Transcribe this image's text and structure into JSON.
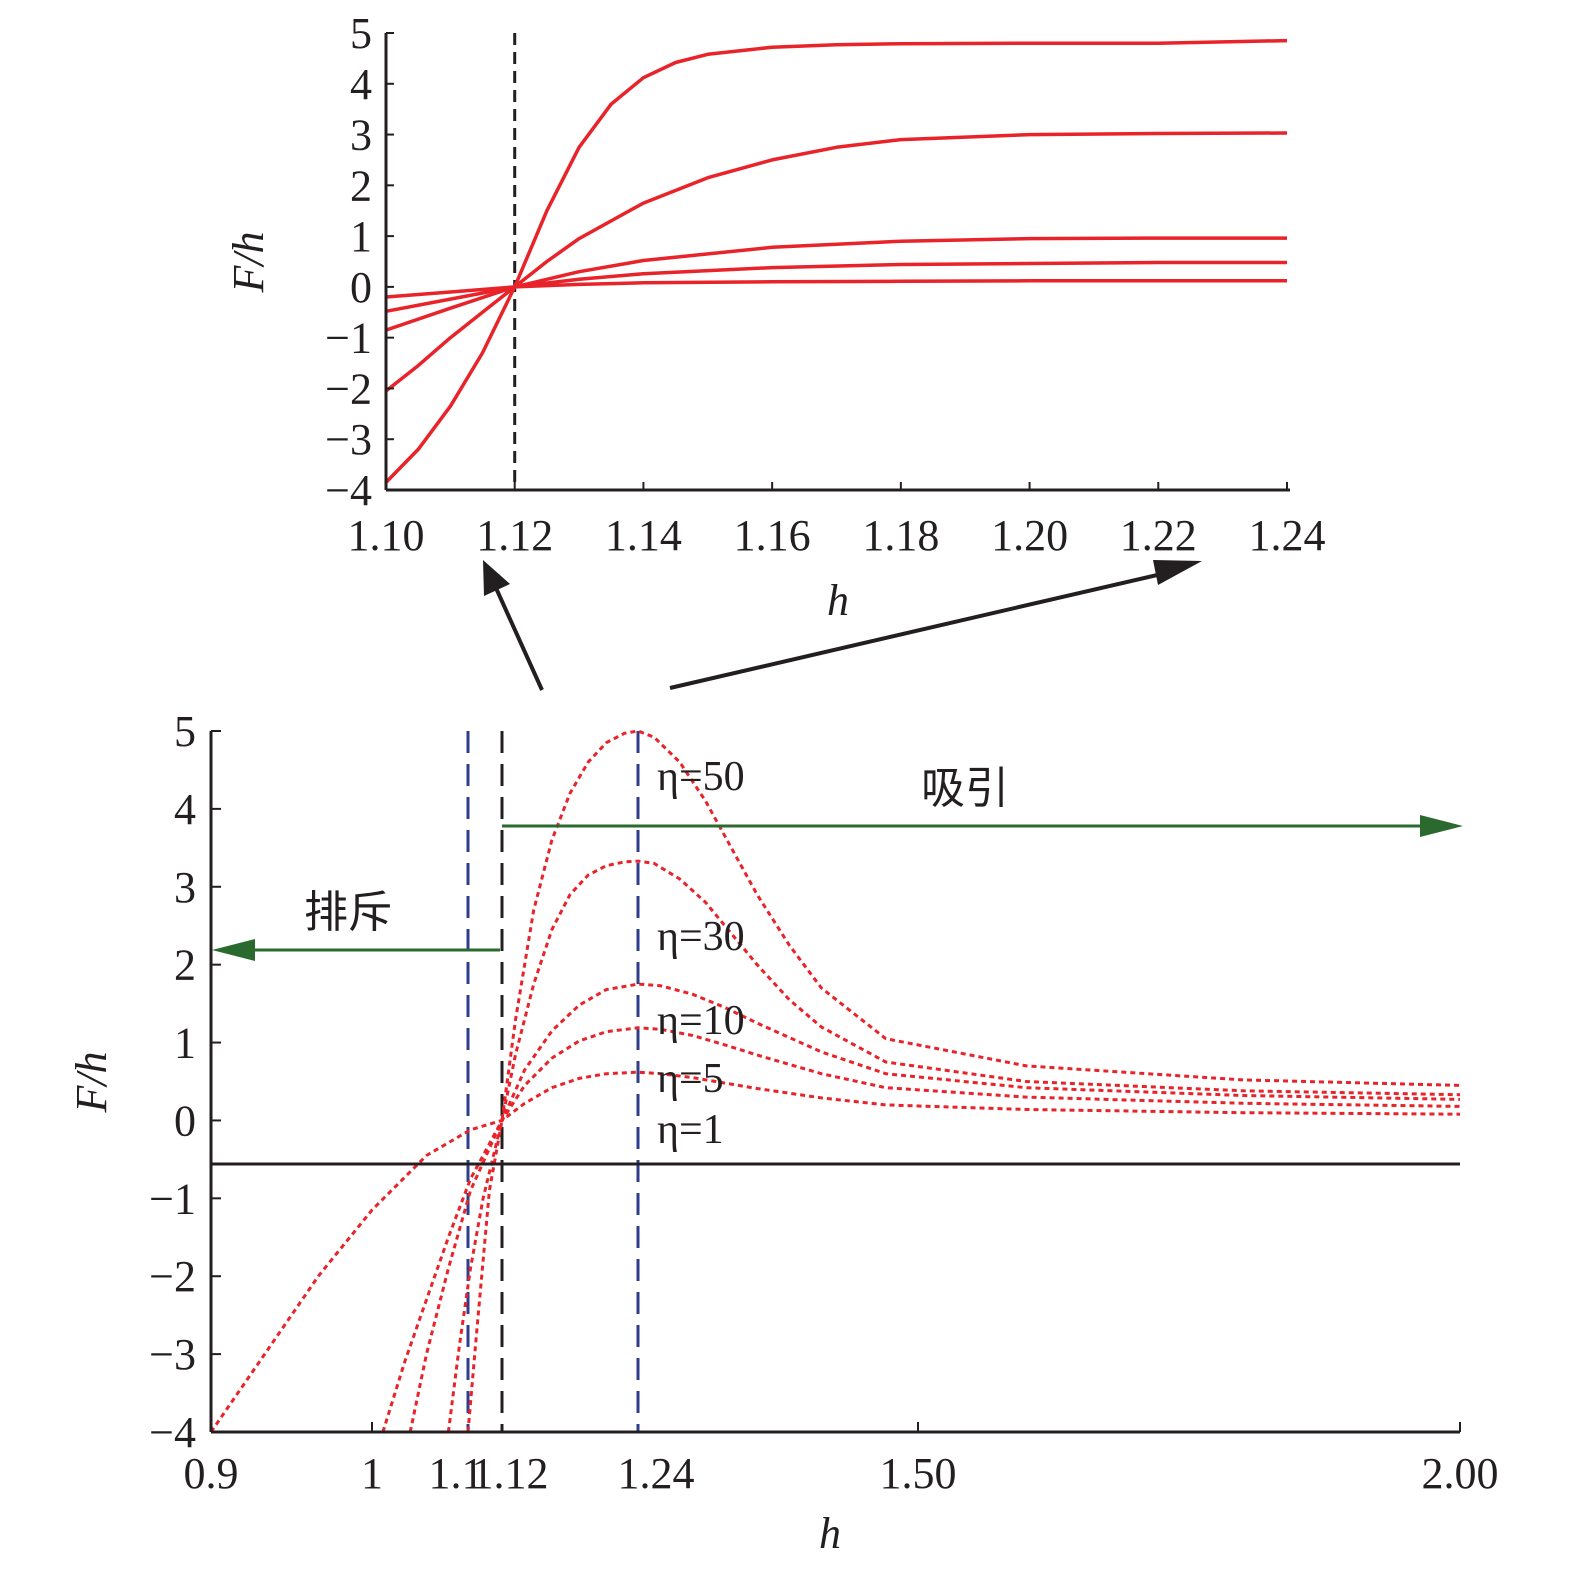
{
  "chart_data": [
    {
      "type": "line",
      "panel": "inset",
      "xlabel": "h",
      "ylabel": "F/h",
      "xlim": [
        1.1,
        1.24
      ],
      "ylim": [
        -4,
        5
      ],
      "xticks": [
        1.1,
        1.12,
        1.14,
        1.16,
        1.18,
        1.2,
        1.22,
        1.24
      ],
      "xtick_labels": [
        "1.10",
        "1.12",
        "1.14",
        "1.16",
        "1.18",
        "1.20",
        "1.22",
        "1.24"
      ],
      "yticks": [
        -4,
        -3,
        -2,
        -1,
        0,
        1,
        2,
        3,
        4,
        5
      ],
      "ytick_labels": [
        "−4",
        "−3",
        "−2",
        "−1",
        "0",
        "1",
        "2",
        "3",
        "4",
        "5"
      ],
      "vline_x": 1.12,
      "line_color": "#e8232a",
      "series": [
        {
          "x": [
            1.1,
            1.105,
            1.11,
            1.115,
            1.12,
            1.125,
            1.13,
            1.135,
            1.14,
            1.145,
            1.15,
            1.16,
            1.17,
            1.18,
            1.2,
            1.22,
            1.24
          ],
          "values": [
            -3.85,
            -3.2,
            -2.35,
            -1.3,
            0.0,
            1.5,
            2.75,
            3.6,
            4.12,
            4.42,
            4.58,
            4.72,
            4.77,
            4.79,
            4.8,
            4.8,
            4.85
          ]
        },
        {
          "x": [
            1.1,
            1.105,
            1.11,
            1.115,
            1.12,
            1.125,
            1.13,
            1.14,
            1.15,
            1.16,
            1.17,
            1.18,
            1.2,
            1.22,
            1.24
          ],
          "values": [
            -2.05,
            -1.55,
            -1.0,
            -0.5,
            0.0,
            0.5,
            0.95,
            1.65,
            2.15,
            2.5,
            2.75,
            2.9,
            3.0,
            3.02,
            3.03
          ]
        },
        {
          "x": [
            1.1,
            1.11,
            1.12,
            1.13,
            1.14,
            1.16,
            1.18,
            1.2,
            1.22,
            1.24
          ],
          "values": [
            -0.85,
            -0.42,
            0.0,
            0.3,
            0.52,
            0.78,
            0.9,
            0.95,
            0.96,
            0.96
          ]
        },
        {
          "x": [
            1.1,
            1.11,
            1.12,
            1.13,
            1.14,
            1.16,
            1.18,
            1.2,
            1.22,
            1.24
          ],
          "values": [
            -0.48,
            -0.24,
            0.0,
            0.15,
            0.26,
            0.38,
            0.44,
            0.46,
            0.48,
            0.48
          ]
        },
        {
          "x": [
            1.1,
            1.11,
            1.12,
            1.13,
            1.14,
            1.16,
            1.18,
            1.2,
            1.22,
            1.24
          ],
          "values": [
            -0.2,
            -0.1,
            0.0,
            0.05,
            0.08,
            0.1,
            0.11,
            0.12,
            0.12,
            0.12
          ]
        }
      ]
    },
    {
      "type": "line",
      "panel": "main",
      "xlabel": "h",
      "ylabel": "F/h",
      "xlim": [
        0.9,
        2.0
      ],
      "ylim": [
        -4,
        5
      ],
      "x_axis_points": [
        0.9,
        1.05,
        1.138,
        1.165,
        1.315,
        1.75,
        2.0
      ],
      "xtick_labels": [
        "0.9",
        "1",
        "1.1",
        "1.12",
        "1.24",
        "1.50",
        "2.00"
      ],
      "yticks": [
        -4,
        -3,
        -2,
        -1,
        0,
        1,
        2,
        3,
        4,
        5
      ],
      "ytick_labels": [
        "−4",
        "−3",
        "−2",
        "−1",
        "0",
        "1",
        "2",
        "3",
        "4",
        "5"
      ],
      "vlines": [
        {
          "x": 1.138,
          "color": "#2e3e8c"
        },
        {
          "x": 1.165,
          "color": "#231f20"
        },
        {
          "x": 1.315,
          "color": "#2e3e8c"
        }
      ],
      "line_color": "#e8232a",
      "series": [
        {
          "name": "η=50",
          "x": [
            1.138,
            1.145,
            1.15,
            1.155,
            1.165,
            1.18,
            1.2,
            1.22,
            1.24,
            1.26,
            1.28,
            1.3,
            1.315,
            1.34,
            1.38,
            1.42,
            1.46,
            1.5,
            1.55,
            1.6,
            1.7,
            1.8,
            1.9,
            2.0
          ],
          "values": [
            -4.0,
            -2.7,
            -1.8,
            -0.9,
            0.0,
            1.3,
            2.7,
            3.6,
            4.2,
            4.6,
            4.85,
            4.97,
            5.0,
            4.92,
            4.6,
            4.1,
            3.5,
            2.9,
            2.25,
            1.7,
            1.05,
            0.7,
            0.52,
            0.45
          ]
        },
        {
          "name": "η=30",
          "x": [
            1.12,
            1.13,
            1.14,
            1.15,
            1.165,
            1.18,
            1.2,
            1.22,
            1.24,
            1.26,
            1.28,
            1.3,
            1.315,
            1.34,
            1.38,
            1.42,
            1.46,
            1.5,
            1.55,
            1.6,
            1.7,
            1.8,
            1.9,
            2.0
          ],
          "values": [
            -4.0,
            -2.9,
            -1.9,
            -1.0,
            0.0,
            0.85,
            1.75,
            2.45,
            2.9,
            3.15,
            3.27,
            3.32,
            3.33,
            3.3,
            3.1,
            2.8,
            2.4,
            2.0,
            1.55,
            1.2,
            0.75,
            0.5,
            0.38,
            0.33
          ]
        },
        {
          "name": "η=10",
          "x": [
            1.085,
            1.1,
            1.12,
            1.14,
            1.165,
            1.19,
            1.22,
            1.25,
            1.28,
            1.315,
            1.35,
            1.4,
            1.45,
            1.5,
            1.6,
            1.7,
            1.8,
            1.9,
            2.0
          ],
          "values": [
            -4.0,
            -3.0,
            -1.9,
            -0.9,
            0.0,
            0.65,
            1.15,
            1.48,
            1.68,
            1.75,
            1.73,
            1.62,
            1.45,
            1.25,
            0.88,
            0.6,
            0.42,
            0.32,
            0.27
          ]
        },
        {
          "name": "η=5",
          "x": [
            1.06,
            1.08,
            1.1,
            1.12,
            1.14,
            1.165,
            1.19,
            1.22,
            1.25,
            1.28,
            1.315,
            1.35,
            1.4,
            1.45,
            1.5,
            1.6,
            1.7,
            1.8,
            1.9,
            2.0
          ],
          "values": [
            -4.0,
            -3.1,
            -2.3,
            -1.5,
            -0.75,
            0.0,
            0.45,
            0.8,
            1.02,
            1.14,
            1.19,
            1.17,
            1.09,
            0.97,
            0.84,
            0.6,
            0.42,
            0.3,
            0.22,
            0.18
          ]
        },
        {
          "name": "η=1",
          "x": [
            0.9,
            0.95,
            1.0,
            1.05,
            1.1,
            1.14,
            1.165,
            1.19,
            1.22,
            1.25,
            1.28,
            1.315,
            1.35,
            1.4,
            1.45,
            1.5,
            1.6,
            1.7,
            1.8,
            1.9,
            2.0
          ],
          "values": [
            -4.0,
            -3.0,
            -2.0,
            -1.15,
            -0.45,
            -0.12,
            0.0,
            0.22,
            0.42,
            0.54,
            0.6,
            0.62,
            0.6,
            0.55,
            0.48,
            0.41,
            0.29,
            0.2,
            0.14,
            0.1,
            0.08
          ]
        }
      ],
      "annotations": {
        "repulsion": "排斥",
        "attraction": "吸引"
      },
      "arrow_color": "#2a6a2e"
    }
  ]
}
